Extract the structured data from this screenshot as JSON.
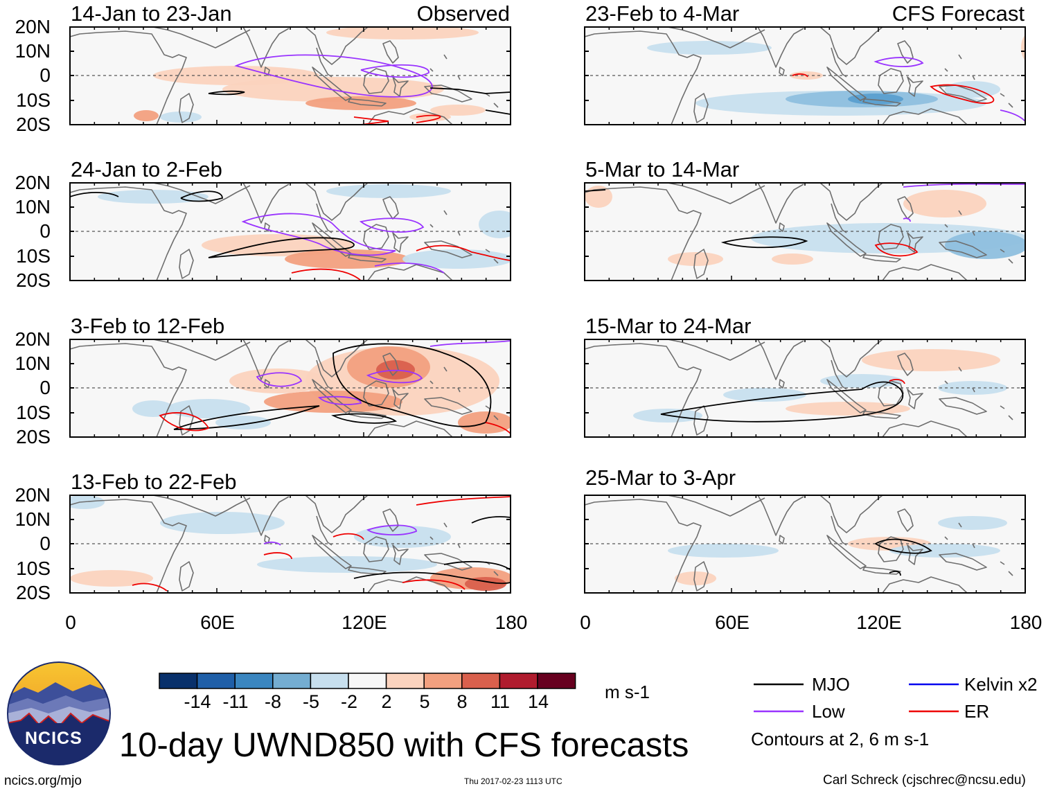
{
  "observed_label": "Observed",
  "forecast_label": "CFS Forecast",
  "panels": {
    "p1": "14-Jan to 23-Jan",
    "p2": "24-Jan to 2-Feb",
    "p3": "3-Feb to 12-Feb",
    "p4": "13-Feb to 22-Feb",
    "p5": "23-Feb to 4-Mar",
    "p6": "5-Mar to 14-Mar",
    "p7": "15-Mar to 24-Mar",
    "p8": "25-Mar to 3-Apr"
  },
  "axes": {
    "y_ticks": [
      "20N",
      "10N",
      "0",
      "10S",
      "20S"
    ],
    "x_ticks": [
      "0",
      "60E",
      "120E",
      "180"
    ]
  },
  "colorbar": {
    "ticks": [
      "-14",
      "-11",
      "-8",
      "-5",
      "-2",
      "2",
      "5",
      "8",
      "11",
      "14"
    ],
    "colors": [
      "#08306b",
      "#1f5fa8",
      "#3a86c0",
      "#74add1",
      "#c7dfee",
      "#f7f7f7",
      "#fbd3be",
      "#f2a07f",
      "#d9604d",
      "#b01c2e",
      "#67001f"
    ],
    "units": "m s-1"
  },
  "legend": {
    "mjo": "MJO",
    "low": "Low",
    "kelvin": "Kelvin x2",
    "er": "ER",
    "note": "Contours at 2, 6 m s-1",
    "colors": {
      "mjo": "#000000",
      "low": "#9933ff",
      "kelvin": "#0000ee",
      "er": "#ee0000"
    }
  },
  "title": "10-day UWND850 with CFS forecasts",
  "logo_text": "NCICS",
  "url": "ncics.org/mjo",
  "timestamp": "Thu 2017-02-23 1113 UTC",
  "author": "Carl Schreck (cjschrec@ncsu.edu)"
}
